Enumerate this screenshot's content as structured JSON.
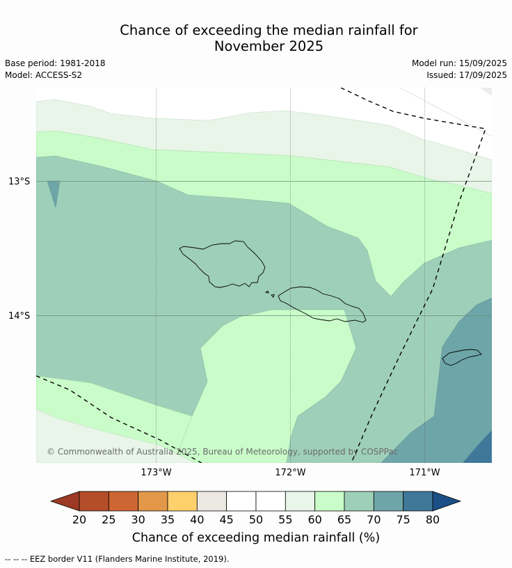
{
  "title_line1": "Chance of exceeding the median rainfall for",
  "title_line2": "November 2025",
  "base_period": "Base period: 1981-2018",
  "model": "Model: ACCESS-S2",
  "model_run": "Model run: 15/09/2025",
  "issued": "Issued: 17/09/2025",
  "copyright": "© Commonwealth of Australia 2025, Bureau of Meteorology, supported by COSPPac",
  "lat_labels": [
    "13°S",
    "14°S"
  ],
  "lon_labels": [
    "173°W",
    "172°W",
    "171°W"
  ],
  "colorbar": {
    "title": "Chance of exceeding median rainfall (%)",
    "ticks": [
      "20",
      "25",
      "30",
      "35",
      "40",
      "45",
      "50",
      "55",
      "60",
      "65",
      "70",
      "75",
      "80"
    ],
    "under_color": "#9c3a25",
    "over_color": "#1b4f86",
    "bin_colors": [
      "#b34d2a",
      "#cd6633",
      "#e29848",
      "#fdd06c",
      "#ece9e2",
      "#ffffff",
      "#ffffff",
      "#e8f5e8",
      "#c9fcc9",
      "#9ecfb8",
      "#6ea5a8",
      "#3f7899"
    ]
  },
  "footnote": "-- -- -- EEZ border V11 (Flanders Marine Institute, 2019)."
}
